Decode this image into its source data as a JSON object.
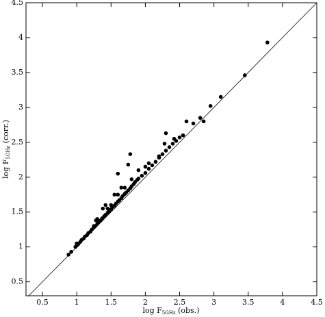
{
  "chart_data": {
    "type": "scatter",
    "x_label": {
      "prefix": "log F",
      "sub": "5GHz",
      "suffix": " (obs.)"
    },
    "y_label": {
      "prefix": "log F",
      "sub": "5GHz",
      "suffix": " (corr.)"
    },
    "color": "#000000",
    "identity_line": true,
    "xlim": [
      0.26,
      4.5
    ],
    "ylim": [
      0.3,
      4.5
    ],
    "xticks": [
      0.5,
      1,
      1.5,
      2,
      2.5,
      3,
      3.5,
      4,
      4.5
    ],
    "yticks": [
      0.5,
      1,
      1.5,
      2,
      2.5,
      3,
      3.5,
      4,
      4.5
    ],
    "x": [
      0.88,
      0.92,
      0.98,
      1.0,
      1.0,
      1.02,
      1.05,
      1.07,
      1.1,
      1.12,
      1.15,
      1.17,
      1.2,
      1.22,
      1.25,
      1.27,
      1.3,
      1.32,
      1.35,
      1.37,
      1.4,
      1.42,
      1.45,
      1.47,
      1.5,
      1.52,
      1.55,
      1.57,
      1.6,
      1.62,
      1.65,
      1.67,
      1.7,
      1.72,
      1.75,
      1.78,
      1.8,
      1.83,
      1.85,
      1.88,
      1.9,
      1.95,
      2.0,
      2.05,
      2.1,
      2.15,
      2.2,
      2.25,
      2.3,
      2.35,
      2.4,
      2.45,
      2.5,
      2.55,
      1.28,
      1.45,
      1.6,
      1.65,
      1.7,
      1.42,
      1.5,
      1.38,
      1.55,
      1.25,
      1.3,
      1.6,
      1.78,
      1.75,
      2.0,
      2.2,
      2.28,
      2.3,
      2.42,
      2.6,
      2.8,
      2.95,
      3.1,
      3.45,
      3.78,
      2.7,
      2.85,
      1.8,
      1.9,
      2.05
    ],
    "y": [
      0.89,
      0.93,
      1.0,
      1.02,
      1.05,
      1.04,
      1.07,
      1.1,
      1.12,
      1.15,
      1.17,
      1.2,
      1.22,
      1.25,
      1.28,
      1.3,
      1.33,
      1.36,
      1.38,
      1.41,
      1.44,
      1.46,
      1.49,
      1.51,
      1.54,
      1.57,
      1.59,
      1.62,
      1.65,
      1.67,
      1.7,
      1.73,
      1.76,
      1.78,
      1.81,
      1.84,
      1.87,
      1.9,
      1.93,
      1.96,
      1.98,
      2.02,
      2.06,
      2.12,
      2.17,
      2.22,
      2.28,
      2.33,
      2.38,
      2.43,
      2.48,
      2.52,
      2.57,
      2.6,
      1.38,
      1.55,
      1.75,
      1.85,
      1.85,
      1.6,
      1.6,
      1.55,
      1.75,
      1.3,
      1.4,
      2.05,
      2.33,
      2.18,
      2.15,
      2.3,
      2.48,
      2.63,
      2.55,
      2.8,
      2.85,
      3.02,
      3.15,
      3.46,
      3.93,
      2.77,
      2.8,
      1.97,
      2.1,
      2.2
    ]
  }
}
